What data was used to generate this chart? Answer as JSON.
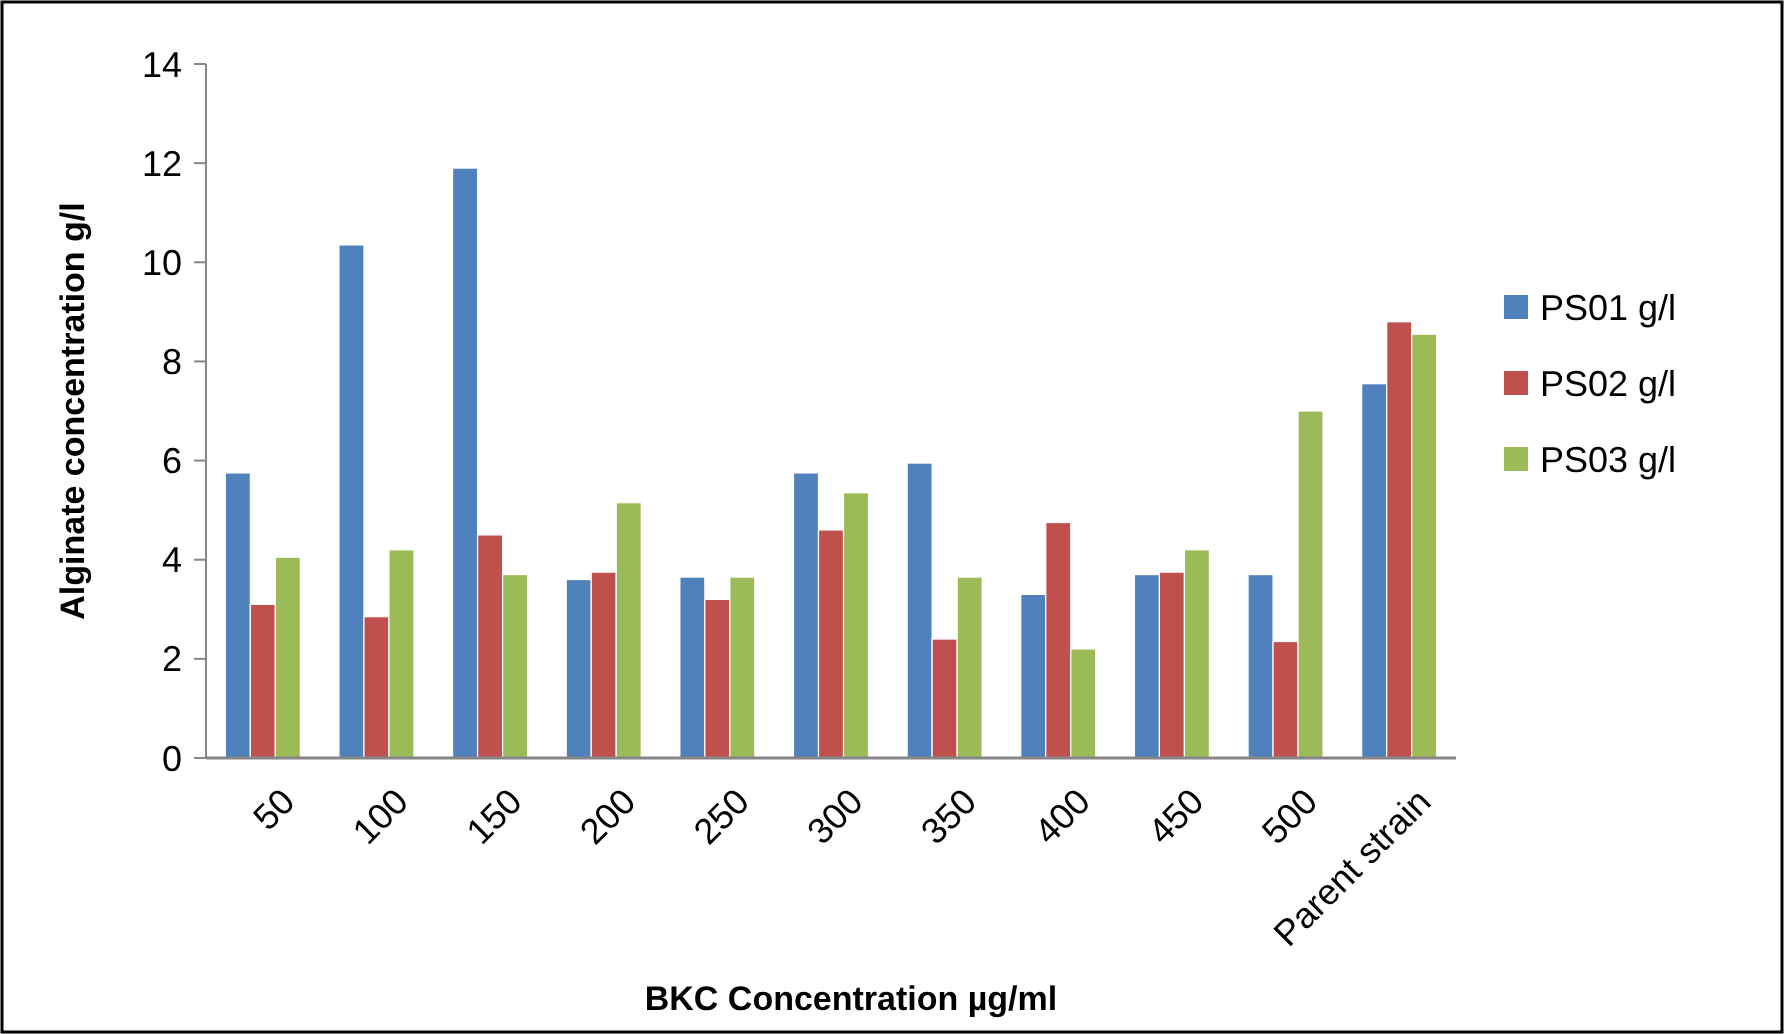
{
  "chart_data": {
    "type": "bar",
    "xlabel": "BKC Concentration µg/ml",
    "ylabel": "Alginate concentration g/l",
    "categories": [
      "50",
      "100",
      "150",
      "200",
      "250",
      "300",
      "350",
      "400",
      "450",
      "500",
      "Parent strain"
    ],
    "series": [
      {
        "name": "PS01 g/l",
        "color": "#4f81bd",
        "values": [
          5.75,
          10.35,
          11.9,
          3.6,
          3.65,
          5.75,
          5.95,
          3.3,
          3.7,
          3.7,
          7.55
        ]
      },
      {
        "name": "PS02 g/l",
        "color": "#c0504d",
        "values": [
          3.1,
          2.85,
          4.5,
          3.75,
          3.2,
          4.6,
          2.4,
          4.75,
          3.75,
          2.35,
          8.8
        ]
      },
      {
        "name": "PS03 g/l",
        "color": "#9bbb59",
        "values": [
          4.05,
          4.2,
          3.7,
          5.15,
          3.65,
          5.35,
          3.65,
          2.2,
          4.2,
          7.0,
          8.55
        ]
      }
    ],
    "ylim": [
      0,
      14
    ],
    "yticks": [
      0,
      2,
      4,
      6,
      8,
      10,
      12,
      14
    ],
    "grid": false,
    "legend": "right"
  }
}
